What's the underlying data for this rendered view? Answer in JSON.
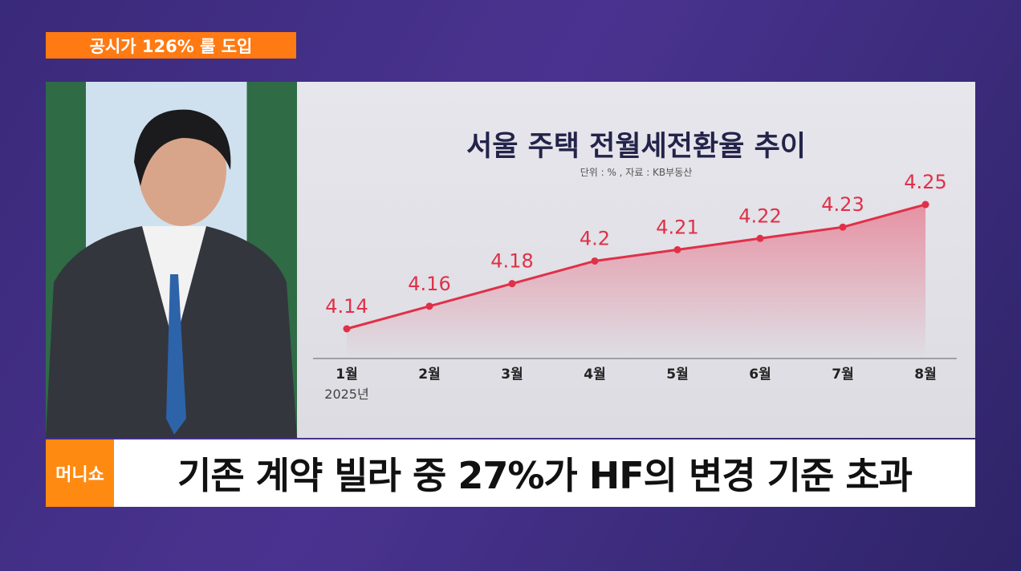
{
  "top_tag": "공시가 126% 룰 도입",
  "logo_text": "머니쇼",
  "caption": "기존 계약 빌라 중 27%가 HF의 변경 기준 초과",
  "colors": {
    "accent": "#ff7a12",
    "line": "#e03048",
    "title": "#23234a",
    "background": "#3a2a7a"
  },
  "chart_data": {
    "type": "area",
    "title": "서울 주택 전월세전환율 추이",
    "subtitle": "단위 : % , 자료 : KB부동산",
    "categories": [
      "1월",
      "2월",
      "3월",
      "4월",
      "5월",
      "6월",
      "7월",
      "8월"
    ],
    "year_label": "2025년",
    "values": [
      4.14,
      4.16,
      4.18,
      4.2,
      4.21,
      4.22,
      4.23,
      4.25
    ],
    "value_labels": [
      "4.14",
      "4.16",
      "4.18",
      "4.2",
      "4.21",
      "4.22",
      "4.23",
      "4.25"
    ],
    "grid": false
  }
}
